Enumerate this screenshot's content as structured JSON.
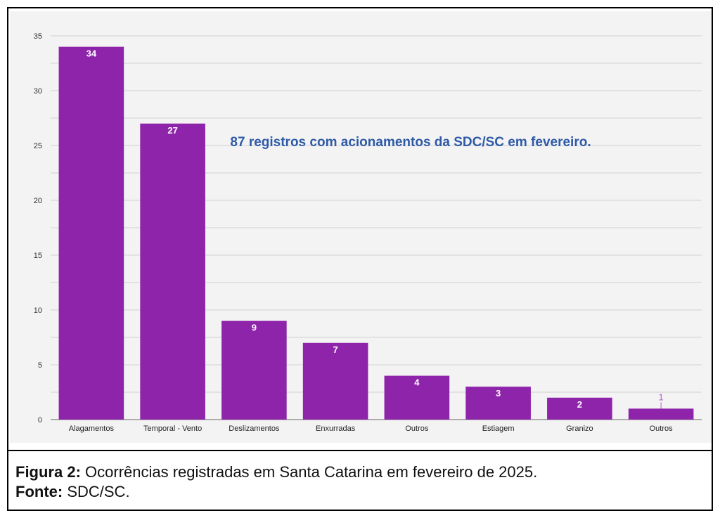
{
  "chart_data": {
    "type": "bar",
    "categories": [
      "Alagamentos",
      "Temporal - Vento",
      "Deslizamentos",
      "Enxurradas",
      "Outros",
      "Estiagem",
      "Granizo",
      "Outros"
    ],
    "values": [
      34,
      27,
      9,
      7,
      4,
      3,
      2,
      1
    ],
    "ylim": [
      0,
      35
    ],
    "yticks": [
      0,
      5,
      10,
      15,
      20,
      25,
      30,
      35
    ],
    "annotation": "87 registros com acionamentos da SDC/SC em fevereiro.",
    "grid": true,
    "bar_color": "#8e24aa",
    "label_color": "#ffffff",
    "small_label_color": "#b35ad0",
    "annotation_color": "#2e5aa7",
    "grid_color": "#d0d0d0"
  },
  "caption": {
    "figure_label": "Figura 2:",
    "figure_text": " Ocorrências registradas em Santa Catarina em fevereiro de 2025.",
    "source_label": "Fonte:",
    "source_text": " SDC/SC."
  }
}
